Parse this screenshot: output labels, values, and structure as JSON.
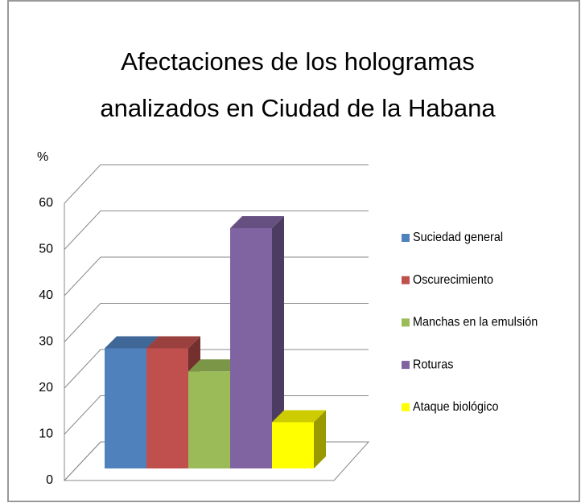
{
  "chart_data": {
    "type": "bar3d",
    "title": "Afectaciones de los hologramas\nanalizados en Ciudad de la Habana",
    "ylabel": "%",
    "categories": [
      null
    ],
    "series": [
      {
        "name": "Suciedad general",
        "color": "#4f81bd",
        "values": [
          26
        ]
      },
      {
        "name": "Oscurecimiento",
        "color": "#c0504d",
        "values": [
          26
        ]
      },
      {
        "name": "Manchas en la emulsión",
        "color": "#9bbb59",
        "values": [
          21
        ]
      },
      {
        "name": "Roturas",
        "color": "#8064a2",
        "values": [
          52
        ]
      },
      {
        "name": "Ataque biológico",
        "color": "#ffff00",
        "values": [
          10
        ]
      }
    ],
    "ylim": [
      0,
      60
    ],
    "yticks": [
      0,
      10,
      20,
      30,
      40,
      50,
      60
    ],
    "grid": true,
    "legend": "right"
  }
}
